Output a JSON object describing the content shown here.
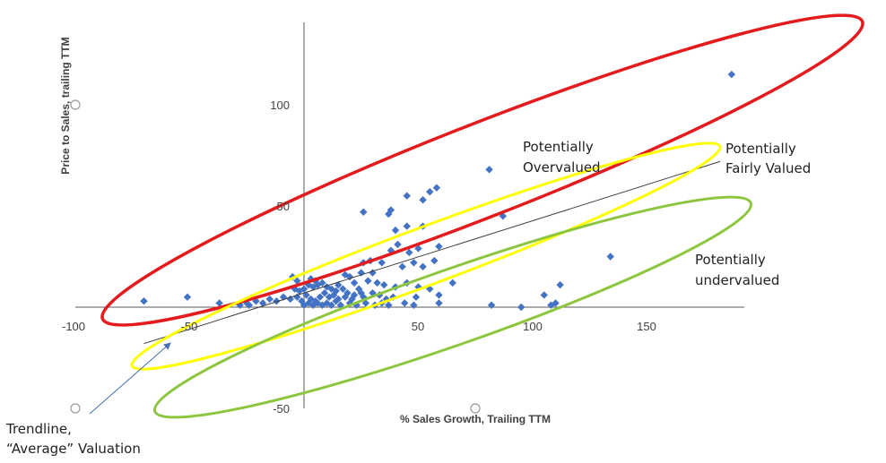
{
  "chart_data": {
    "type": "scatter",
    "title": "",
    "xlabel": "% Sales Growth, Trailing TTM",
    "ylabel": "Price to Sales, trailing TTM",
    "xlim": [
      -100,
      190
    ],
    "ylim": [
      -50,
      140
    ],
    "x_ticks": [
      {
        "value": -100,
        "label": "-100"
      },
      {
        "value": -50,
        "label": "-50"
      },
      {
        "value": 50,
        "label": "50"
      },
      {
        "value": 100,
        "label": "100"
      },
      {
        "value": 150,
        "label": "150"
      }
    ],
    "y_ticks": [
      {
        "value": 100,
        "label": "100"
      },
      {
        "value": 50,
        "label": "50"
      },
      {
        "value": -50,
        "label": "-50"
      }
    ],
    "grid": false,
    "marker_color": "#4472C4",
    "points": [
      [
        187,
        115
      ],
      [
        81,
        68
      ],
      [
        58,
        59
      ],
      [
        55,
        57
      ],
      [
        45,
        55
      ],
      [
        52,
        53
      ],
      [
        38,
        48
      ],
      [
        37,
        46
      ],
      [
        26,
        47
      ],
      [
        87,
        45
      ],
      [
        52,
        40
      ],
      [
        45,
        40
      ],
      [
        40,
        38
      ],
      [
        134,
        25
      ],
      [
        59,
        30
      ],
      [
        41,
        31
      ],
      [
        50,
        29
      ],
      [
        46,
        27
      ],
      [
        38,
        28
      ],
      [
        57,
        23
      ],
      [
        48,
        22
      ],
      [
        52,
        20
      ],
      [
        43,
        20
      ],
      [
        34,
        22
      ],
      [
        29,
        23
      ],
      [
        26,
        22
      ],
      [
        30,
        17
      ],
      [
        25,
        17
      ],
      [
        18,
        16
      ],
      [
        20,
        15
      ],
      [
        22,
        12
      ],
      [
        28,
        13
      ],
      [
        32,
        12
      ],
      [
        35,
        11
      ],
      [
        40,
        10
      ],
      [
        45,
        12
      ],
      [
        50,
        10
      ],
      [
        55,
        9
      ],
      [
        65,
        12
      ],
      [
        112,
        11
      ],
      [
        105,
        6
      ],
      [
        59,
        6
      ],
      [
        49,
        5
      ],
      [
        39,
        5
      ],
      [
        36,
        4
      ],
      [
        15,
        11
      ],
      [
        12,
        9
      ],
      [
        10,
        10
      ],
      [
        8,
        12
      ],
      [
        6,
        11
      ],
      [
        4,
        10
      ],
      [
        2,
        11
      ],
      [
        0,
        9
      ],
      [
        -2,
        8
      ],
      [
        -4,
        9
      ],
      [
        -5,
        15
      ],
      [
        -3,
        13
      ],
      [
        3,
        14
      ],
      [
        5,
        13
      ],
      [
        9,
        7
      ],
      [
        14,
        8
      ],
      [
        17,
        9
      ],
      [
        19,
        7
      ],
      [
        22,
        6
      ],
      [
        24,
        9
      ],
      [
        26,
        5
      ],
      [
        30,
        7
      ],
      [
        33,
        6
      ],
      [
        7,
        5
      ],
      [
        5,
        3
      ],
      [
        3,
        4
      ],
      [
        1,
        6
      ],
      [
        -1,
        3
      ],
      [
        -3,
        5
      ],
      [
        -6,
        4
      ],
      [
        -9,
        5
      ],
      [
        -12,
        3
      ],
      [
        -15,
        4
      ],
      [
        -18,
        2
      ],
      [
        -21,
        3
      ],
      [
        -25,
        2
      ],
      [
        -28,
        1
      ],
      [
        -37,
        2
      ],
      [
        -51,
        5
      ],
      [
        -70,
        3
      ],
      [
        -24,
        1
      ],
      [
        0,
        1
      ],
      [
        2,
        2
      ],
      [
        4,
        1
      ],
      [
        6,
        2
      ],
      [
        8,
        1
      ],
      [
        10,
        2
      ],
      [
        12,
        1
      ],
      [
        14,
        3
      ],
      [
        16,
        1
      ],
      [
        20,
        2
      ],
      [
        23,
        1
      ],
      [
        27,
        2
      ],
      [
        31,
        1
      ],
      [
        34,
        2
      ],
      [
        37,
        1
      ],
      [
        44,
        2
      ],
      [
        48,
        1
      ],
      [
        59,
        2
      ],
      [
        82,
        1
      ],
      [
        95,
        0
      ],
      [
        108,
        1
      ],
      [
        110,
        2
      ],
      [
        11,
        5
      ],
      [
        13,
        6
      ],
      [
        15,
        4
      ],
      [
        18,
        5
      ],
      [
        21,
        4
      ],
      [
        25,
        7
      ]
    ],
    "trendline": {
      "x": [
        -70,
        182
      ],
      "y": [
        -18,
        72
      ],
      "label": "Trendline, “Average” Valuation"
    },
    "annotations": [
      {
        "text_lines": [
          "Potentially",
          "Overvalued"
        ],
        "color": "#E41A1C"
      },
      {
        "text_lines": [
          "Potentially",
          "Fairly Valued"
        ],
        "color": "#FFFF00"
      },
      {
        "text_lines": [
          "Potentially",
          "undervalued"
        ],
        "color": "#8CC63F"
      }
    ]
  }
}
